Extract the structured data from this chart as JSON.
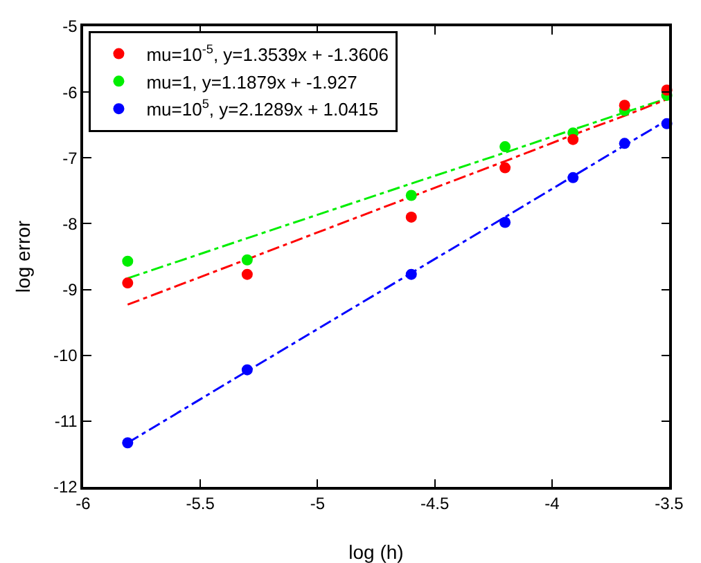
{
  "chart_data": {
    "type": "scatter",
    "xlabel": "log (h)",
    "ylabel": "log error",
    "xlim": [
      -6,
      -3.5
    ],
    "xticks": [
      -6,
      -5.5,
      -5,
      -4.5,
      -4,
      -3.5
    ],
    "ylim": [
      -12,
      -5
    ],
    "yticks": [
      -12,
      -11,
      -10,
      -9,
      -8,
      -7,
      -6,
      -5
    ],
    "grid": false,
    "legend": "top left",
    "marker": "circle",
    "x": [
      -5.81,
      -5.3,
      -4.6,
      -4.2,
      -3.91,
      -3.69,
      -3.51
    ],
    "series": [
      {
        "name": "mu=10$^{-5}$, y=1.3539x + -1.3606",
        "color": "#ff0000",
        "values": [
          -8.9,
          -8.77,
          -7.9,
          -7.15,
          -6.72,
          -6.2,
          -5.97
        ]
      },
      {
        "name": "mu=1, y=1.1879x + -1.927",
        "color": "#00ee00",
        "values": [
          -8.57,
          -8.55,
          -7.57,
          -6.83,
          -6.62,
          -6.28,
          -6.05
        ]
      },
      {
        "name": "mu=10$^{5}$, y=2.1289x + 1.0415",
        "color": "#0000ff",
        "values": [
          -11.33,
          -10.22,
          -8.77,
          -7.98,
          -7.3,
          -6.78,
          -6.48
        ]
      },
      {
        "type": "line",
        "color": "#ff0000",
        "line_style": "dashed",
        "marker": "none",
        "values": [
          -9.23,
          -8.54,
          -7.59,
          -7.05,
          -6.65,
          -6.36,
          -6.11
        ]
      },
      {
        "type": "line",
        "color": "#00ee00",
        "line_style": "dashed",
        "marker": "none",
        "values": [
          -8.83,
          -8.22,
          -7.39,
          -6.92,
          -6.57,
          -6.31,
          -6.1
        ]
      },
      {
        "type": "line",
        "color": "#0000ff",
        "line_style": "dashed",
        "marker": "none",
        "values": [
          -11.33,
          -10.24,
          -8.75,
          -7.9,
          -7.28,
          -6.81,
          -6.43
        ]
      }
    ]
  }
}
